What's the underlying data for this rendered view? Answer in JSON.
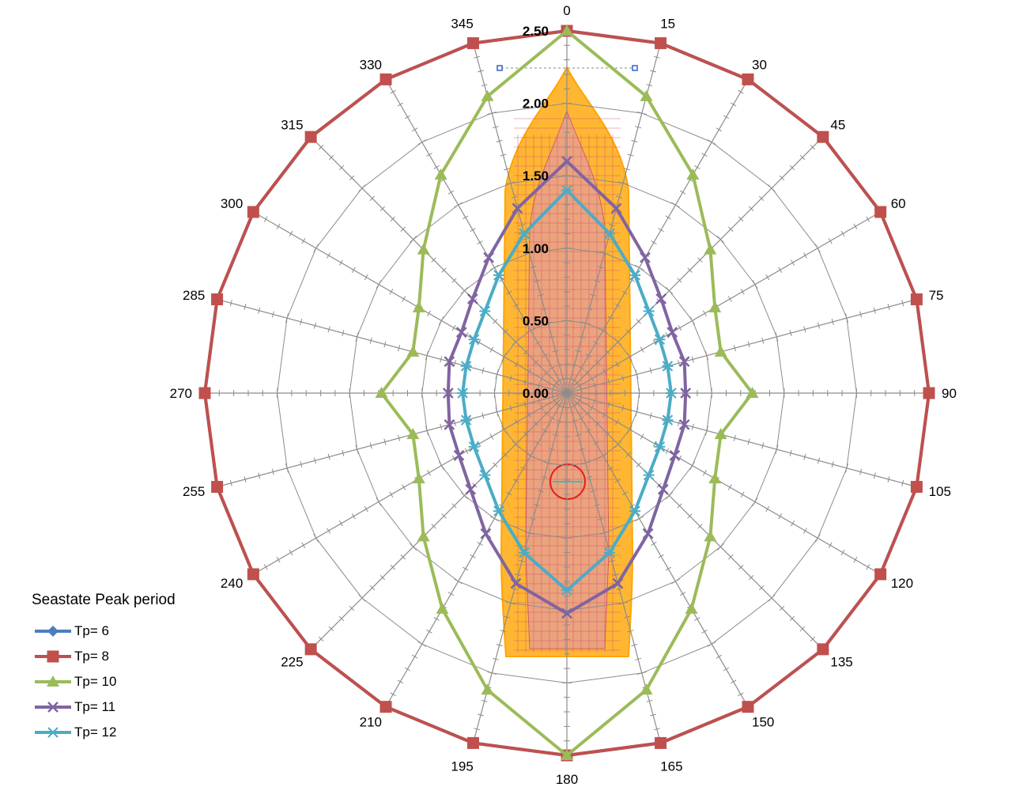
{
  "chart_data": {
    "type": "radar",
    "radial_ticks": [
      "0.00",
      "0.50",
      "1.00",
      "1.50",
      "2.00",
      "2.50"
    ],
    "rlim": [
      0,
      2.5
    ],
    "angles": [
      0,
      15,
      30,
      45,
      60,
      75,
      90,
      105,
      120,
      135,
      150,
      165,
      180,
      195,
      210,
      225,
      240,
      255,
      270,
      285,
      300,
      315,
      330,
      345
    ],
    "angle_labels": [
      "0",
      "15",
      "30",
      "45",
      "60",
      "75",
      "90",
      "105",
      "120",
      "135",
      "150",
      "165",
      "180",
      "195",
      "210",
      "225",
      "240",
      "255",
      "270",
      "285",
      "300",
      "315",
      "330",
      "345"
    ],
    "grid": true,
    "legend": {
      "title": "Seastate Peak period",
      "position": "bottom-left"
    },
    "series": [
      {
        "name": "Tp= 6",
        "color": "#4a7ebb",
        "marker": "diamond",
        "values": [
          2.5,
          2.5,
          2.5,
          2.5,
          2.5,
          2.5,
          2.5,
          2.5,
          2.5,
          2.5,
          2.5,
          2.5,
          2.5,
          2.5,
          2.5,
          2.5,
          2.5,
          2.5,
          2.5,
          2.5,
          2.5,
          2.5,
          2.5,
          2.5
        ]
      },
      {
        "name": "Tp= 8",
        "color": "#c0504d",
        "marker": "square",
        "values": [
          2.5,
          2.5,
          2.5,
          2.5,
          2.5,
          2.5,
          2.5,
          2.5,
          2.5,
          2.5,
          2.5,
          2.5,
          2.5,
          2.5,
          2.5,
          2.5,
          2.5,
          2.5,
          2.5,
          2.5,
          2.5,
          2.5,
          2.5,
          2.5
        ]
      },
      {
        "name": "Tp= 10",
        "color": "#9bbb59",
        "marker": "triangle",
        "values": [
          2.5,
          2.12,
          1.74,
          1.4,
          1.18,
          1.1,
          1.28,
          1.1,
          1.18,
          1.4,
          1.72,
          2.12,
          2.5,
          2.12,
          1.72,
          1.4,
          1.18,
          1.1,
          1.28,
          1.1,
          1.18,
          1.4,
          1.74,
          2.12
        ]
      },
      {
        "name": "Tp= 11",
        "color": "#8064a2",
        "marker": "x",
        "values": [
          1.6,
          1.32,
          1.08,
          0.92,
          0.84,
          0.84,
          0.82,
          0.84,
          0.86,
          0.94,
          1.12,
          1.36,
          1.52,
          1.36,
          1.12,
          0.94,
          0.86,
          0.84,
          0.82,
          0.84,
          0.84,
          0.92,
          1.08,
          1.32
        ]
      },
      {
        "name": "Tp= 12",
        "color": "#4bacc6",
        "marker": "star",
        "values": [
          1.4,
          1.14,
          0.94,
          0.8,
          0.74,
          0.72,
          0.72,
          0.72,
          0.74,
          0.8,
          0.94,
          1.14,
          1.36,
          1.14,
          0.94,
          0.8,
          0.74,
          0.72,
          0.72,
          0.72,
          0.74,
          0.8,
          0.94,
          1.14
        ]
      }
    ]
  }
}
